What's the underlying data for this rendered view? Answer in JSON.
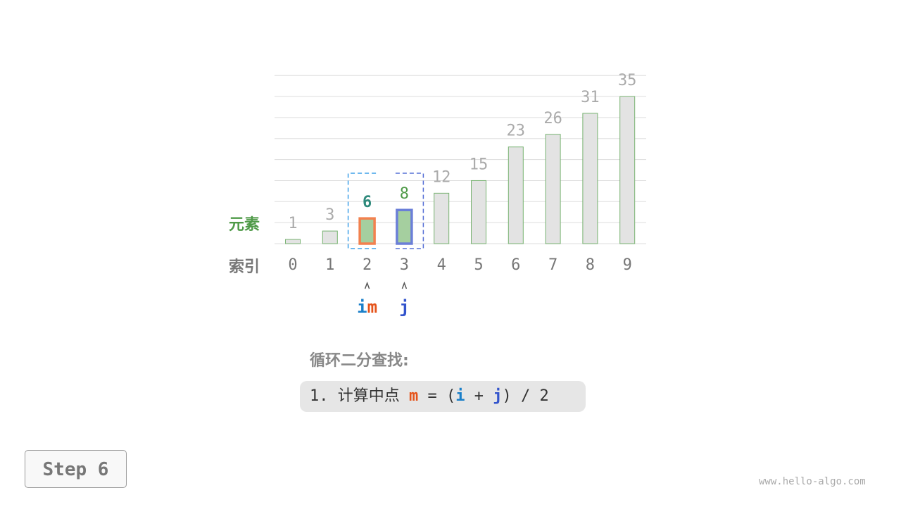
{
  "row_labels": {
    "elements": "元素",
    "index": "索引"
  },
  "array": [
    1,
    3,
    6,
    8,
    12,
    15,
    23,
    26,
    31,
    35
  ],
  "indices": [
    0,
    1,
    2,
    3,
    4,
    5,
    6,
    7,
    8,
    9
  ],
  "pointers": [
    {
      "name": "i",
      "index": 2,
      "color": "#1a7fc9"
    },
    {
      "name": "m",
      "index": 2,
      "color": "#e5531a"
    },
    {
      "name": "j",
      "index": 3,
      "color": "#3354cc"
    }
  ],
  "highlight": {
    "i_index": 2,
    "j_index": 3,
    "m_index": 2
  },
  "colors": {
    "bar_fill": "#e3e3e3",
    "bar_stroke": "#77b270",
    "active_fill": "#a5cf9f",
    "m_border": "#f2814f",
    "j_border": "#6b7fd8",
    "i_bracket": "#3ea0e8",
    "j_bracket": "#5770d6",
    "label_green": "#4f9a48",
    "value_gray": "#aaa",
    "m_value": "#2f8a7c",
    "j_value": "#4f9a48"
  },
  "title": "循环二分查找:",
  "formula": {
    "prefix": "1. 计算中点 ",
    "m": "m",
    "eq": " = (",
    "i": "i",
    "plus": " + ",
    "j": "j",
    "suffix": ") / 2"
  },
  "step_label": "Step 6",
  "watermark": "www.hello-algo.com"
}
